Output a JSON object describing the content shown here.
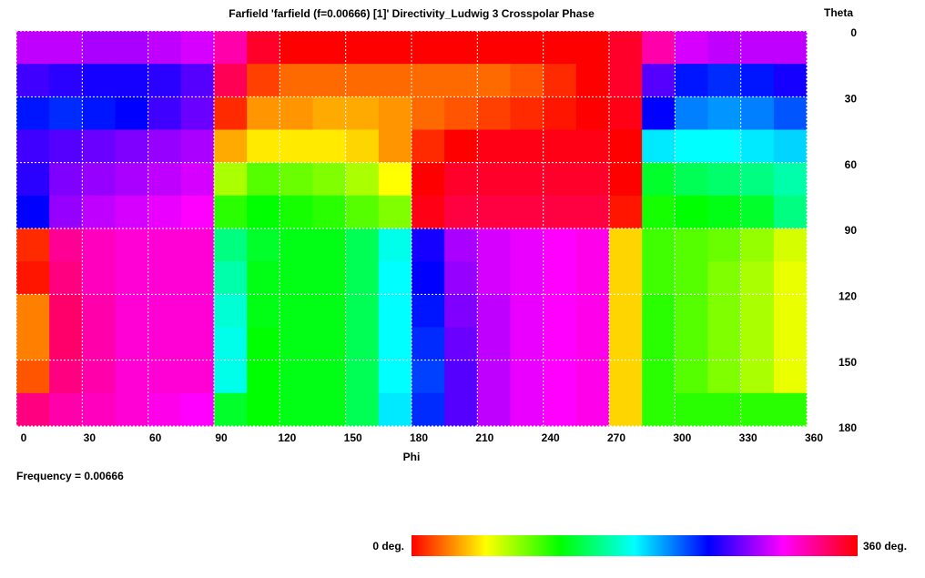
{
  "chart_data": {
    "type": "heatmap",
    "title": "Farfield 'farfield (f=0.00666) [1]' Directivity_Ludwig 3 Crosspolar Phase",
    "x_label": "Phi",
    "y_label": "Theta",
    "annotation": "Frequency  = 0.00666",
    "xlim": [
      0,
      360
    ],
    "ylim": [
      0,
      180
    ],
    "y_reversed": true,
    "grid": true,
    "xticks": [
      0,
      30,
      60,
      90,
      120,
      150,
      180,
      210,
      240,
      270,
      300,
      330,
      360
    ],
    "yticks": [
      0,
      30,
      60,
      90,
      120,
      150,
      180
    ],
    "x": [
      7.5,
      22.5,
      37.5,
      52.5,
      67.5,
      82.5,
      97.5,
      112.5,
      127.5,
      142.5,
      157.5,
      172.5,
      187.5,
      202.5,
      217.5,
      232.5,
      247.5,
      262.5,
      277.5,
      292.5,
      307.5,
      322.5,
      337.5,
      352.5
    ],
    "y": [
      7.5,
      22.5,
      37.5,
      52.5,
      67.5,
      82.5,
      97.5,
      112.5,
      127.5,
      142.5,
      157.5,
      172.5
    ],
    "z": [
      [
        285,
        285,
        280,
        280,
        285,
        290,
        320,
        350,
        0,
        0,
        0,
        0,
        0,
        0,
        0,
        0,
        0,
        0,
        350,
        320,
        290,
        285,
        285,
        285
      ],
      [
        255,
        250,
        245,
        245,
        250,
        260,
        340,
        15,
        25,
        25,
        25,
        25,
        25,
        25,
        25,
        20,
        10,
        0,
        350,
        260,
        235,
        230,
        235,
        245
      ],
      [
        235,
        230,
        235,
        240,
        255,
        265,
        10,
        35,
        35,
        40,
        40,
        35,
        25,
        20,
        15,
        10,
        5,
        0,
        355,
        240,
        210,
        205,
        210,
        220
      ],
      [
        255,
        260,
        265,
        270,
        275,
        280,
        40,
        55,
        55,
        55,
        50,
        35,
        10,
        0,
        355,
        355,
        355,
        355,
        0,
        185,
        180,
        180,
        185,
        190
      ],
      [
        250,
        270,
        275,
        280,
        285,
        290,
        80,
        100,
        95,
        90,
        80,
        60,
        0,
        350,
        350,
        350,
        350,
        350,
        0,
        130,
        140,
        145,
        150,
        160
      ],
      [
        240,
        275,
        285,
        290,
        295,
        300,
        110,
        120,
        115,
        110,
        100,
        90,
        355,
        345,
        345,
        345,
        345,
        345,
        5,
        115,
        120,
        125,
        130,
        150
      ],
      [
        10,
        325,
        315,
        310,
        310,
        310,
        150,
        130,
        125,
        125,
        140,
        175,
        245,
        280,
        290,
        295,
        300,
        305,
        50,
        105,
        100,
        95,
        85,
        70
      ],
      [
        5,
        330,
        315,
        310,
        310,
        310,
        160,
        125,
        125,
        125,
        140,
        180,
        240,
        275,
        290,
        295,
        300,
        305,
        50,
        105,
        100,
        90,
        80,
        65
      ],
      [
        30,
        335,
        320,
        310,
        310,
        310,
        170,
        125,
        125,
        125,
        140,
        180,
        235,
        270,
        285,
        295,
        300,
        305,
        50,
        110,
        100,
        90,
        80,
        65
      ],
      [
        30,
        335,
        320,
        310,
        310,
        310,
        175,
        120,
        125,
        125,
        140,
        180,
        230,
        265,
        285,
        295,
        300,
        305,
        50,
        110,
        100,
        90,
        80,
        65
      ],
      [
        20,
        330,
        320,
        310,
        310,
        310,
        175,
        120,
        125,
        125,
        140,
        180,
        225,
        260,
        285,
        295,
        300,
        305,
        50,
        110,
        100,
        90,
        80,
        65
      ],
      [
        330,
        320,
        315,
        310,
        305,
        300,
        130,
        120,
        125,
        125,
        140,
        185,
        230,
        260,
        285,
        295,
        300,
        305,
        50,
        110,
        110,
        110,
        110,
        110
      ]
    ],
    "colorbar": {
      "min": {
        "value": 0,
        "label": "0 deg."
      },
      "max": {
        "value": 360,
        "label": "360 deg."
      }
    }
  }
}
